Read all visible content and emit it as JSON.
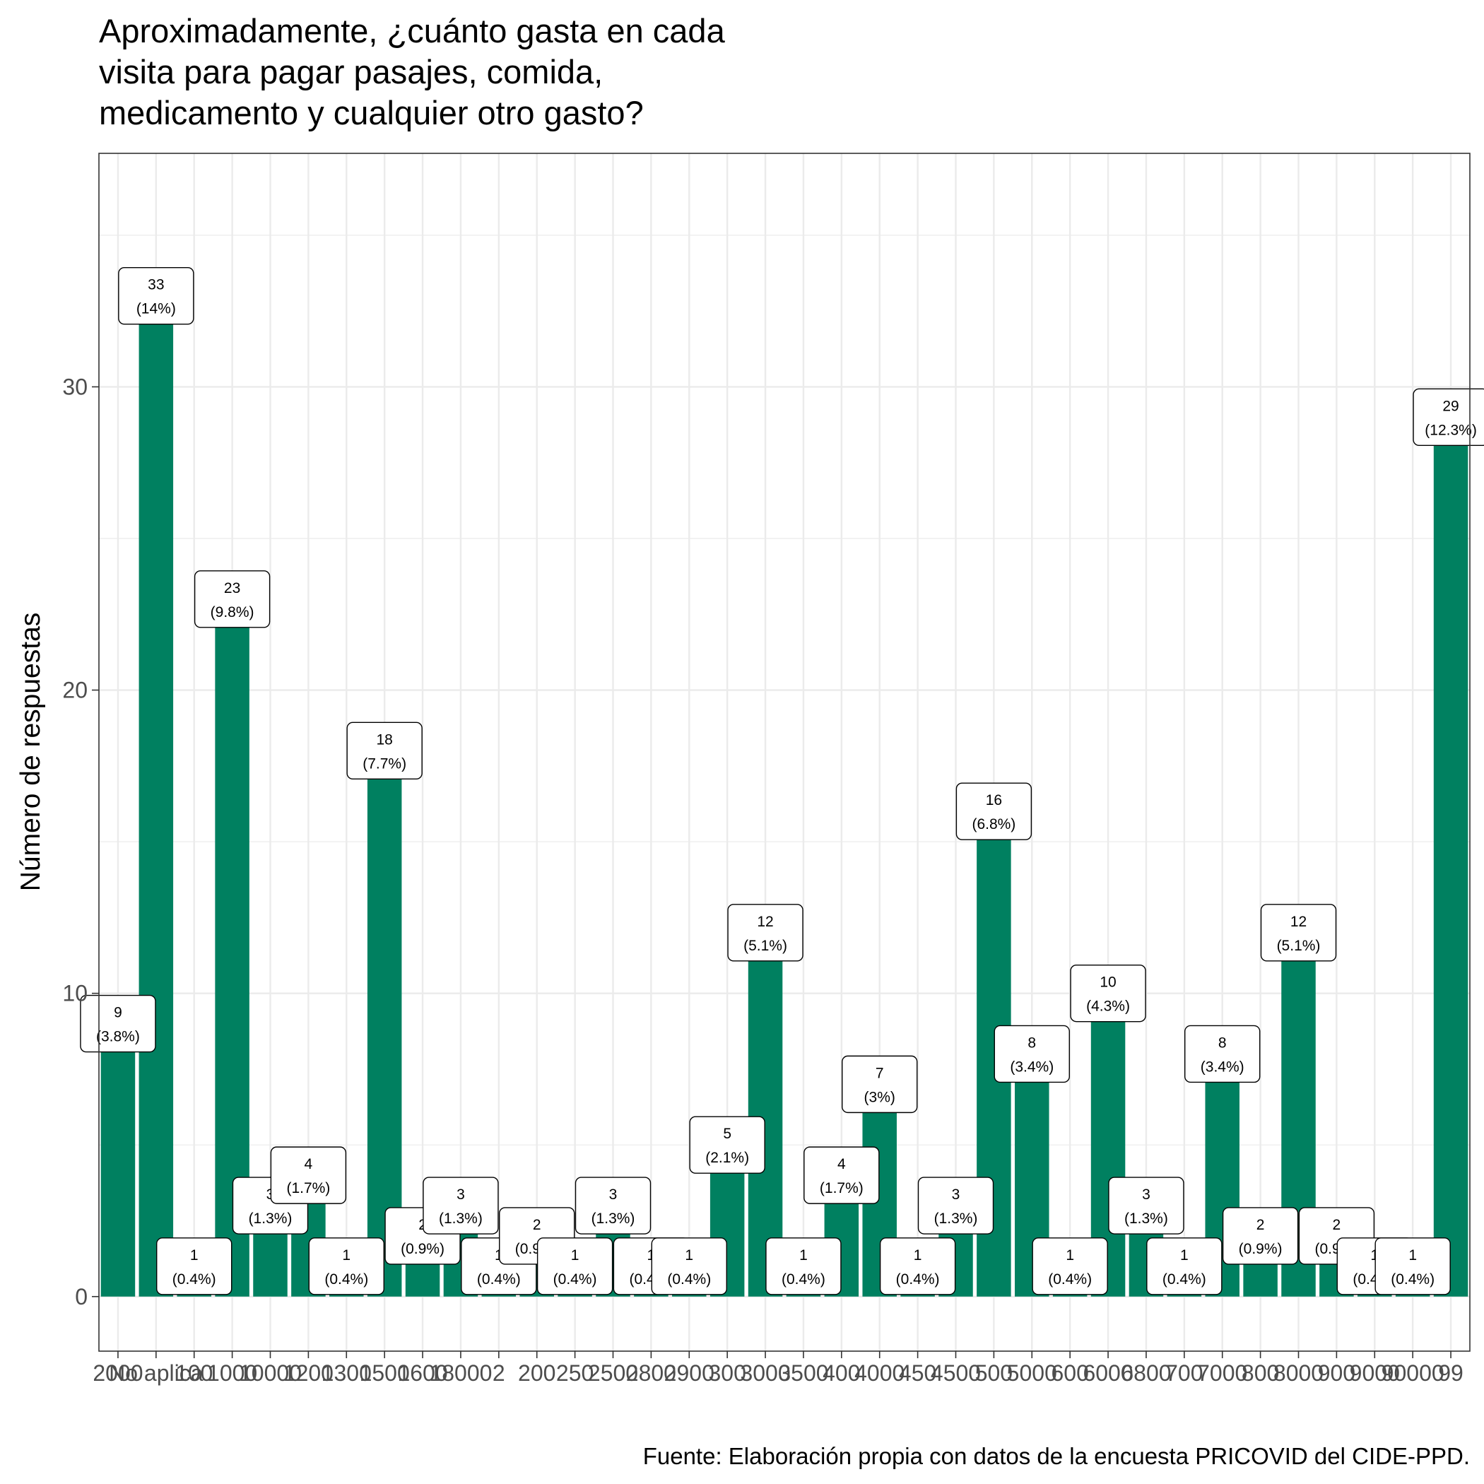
{
  "chart_data": {
    "type": "bar",
    "title": "Aproximadamente, ¿cuánto gasta en cada visita para pagar pasajes, comida, medicamento y cualquier otro gasto?",
    "title_lines": [
      "Aproximadamente, ¿cuánto gasta en cada",
      "visita para pagar pasajes, comida,",
      "medicamento y cualquier otro gasto?"
    ],
    "xlabel": "",
    "ylabel": "Número de respuestas",
    "caption": "Fuente: Elaboración propia con datos de la encuesta PRICOVID del CIDE-PPD.",
    "ylim": [
      -1.8,
      37.7
    ],
    "yticks": [
      0,
      10,
      20,
      30
    ],
    "grid": true,
    "bar_color": "#008060",
    "categories": [
      "2000",
      "No aplica",
      "100",
      "1000",
      "10000",
      "1200",
      "1300",
      "1500",
      "1600",
      "18000",
      "2",
      "200",
      "250",
      "2500",
      "2800",
      "2900",
      "300",
      "3000",
      "3500",
      "400",
      "4000",
      "450",
      "4500",
      "500",
      "5000",
      "600",
      "6000",
      "6800",
      "700",
      "7000",
      "800",
      "8000",
      "900",
      "9000",
      "90000",
      "99"
    ],
    "values": [
      9,
      33,
      1,
      23,
      3,
      4,
      1,
      18,
      2,
      3,
      1,
      2,
      1,
      3,
      1,
      1,
      5,
      12,
      1,
      4,
      7,
      1,
      3,
      16,
      8,
      1,
      10,
      3,
      1,
      8,
      2,
      12,
      2,
      1,
      1,
      29
    ],
    "labels": [
      [
        "9",
        "(3.8%)"
      ],
      [
        "33",
        "(14%)"
      ],
      [
        "1",
        "(0.4%)"
      ],
      [
        "23",
        "(9.8%)"
      ],
      [
        "3",
        "(1.3%)"
      ],
      [
        "4",
        "(1.7%)"
      ],
      [
        "1",
        "(0.4%)"
      ],
      [
        "18",
        "(7.7%)"
      ],
      [
        "2",
        "(0.9%)"
      ],
      [
        "3",
        "(1.3%)"
      ],
      [
        "1",
        "(0.4%)"
      ],
      [
        "2",
        "(0.9%)"
      ],
      [
        "1",
        "(0.4%)"
      ],
      [
        "3",
        "(1.3%)"
      ],
      [
        "1",
        "(0.4%)"
      ],
      [
        "1",
        "(0.4%)"
      ],
      [
        "5",
        "(2.1%)"
      ],
      [
        "12",
        "(5.1%)"
      ],
      [
        "1",
        "(0.4%)"
      ],
      [
        "4",
        "(1.7%)"
      ],
      [
        "7",
        "(3%)"
      ],
      [
        "1",
        "(0.4%)"
      ],
      [
        "3",
        "(1.3%)"
      ],
      [
        "16",
        "(6.8%)"
      ],
      [
        "8",
        "(3.4%)"
      ],
      [
        "1",
        "(0.4%)"
      ],
      [
        "10",
        "(4.3%)"
      ],
      [
        "3",
        "(1.3%)"
      ],
      [
        "1",
        "(0.4%)"
      ],
      [
        "8",
        "(3.4%)"
      ],
      [
        "2",
        "(0.9%)"
      ],
      [
        "12",
        "(5.1%)"
      ],
      [
        "2",
        "(0.9%)"
      ],
      [
        "1",
        "(0.4%)"
      ],
      [
        "1",
        "(0.4%)"
      ],
      [
        "29",
        "(12.3%)"
      ]
    ]
  }
}
